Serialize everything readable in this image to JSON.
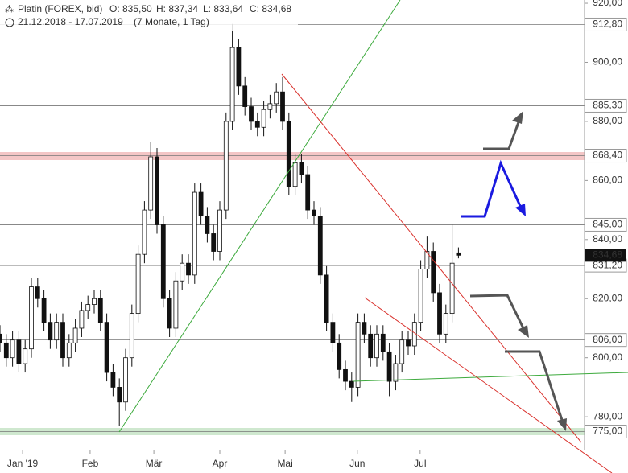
{
  "chart_data": {
    "type": "candlestick",
    "title": "Platin (FOREX, bid)",
    "ohlc_labels": [
      "O: 835,50",
      "H: 837,34",
      "L: 833,64",
      "C: 834,68"
    ],
    "subtitle": "21.12.2018 - 17.07.2019",
    "period": "(7 Monate, 1 Tag)",
    "x": [
      0,
      2,
      4,
      6,
      8,
      10,
      12,
      14,
      16,
      18,
      20,
      22,
      24,
      26,
      28,
      30,
      32,
      34,
      36,
      38,
      40,
      42,
      44,
      46,
      48,
      50,
      52,
      54,
      56,
      58,
      60,
      62,
      64,
      66,
      68,
      70,
      72,
      74,
      76,
      78,
      80,
      82,
      84,
      86,
      88,
      90,
      92,
      94,
      96,
      98,
      100,
      102,
      104,
      106,
      108,
      110,
      112,
      114,
      116,
      118,
      120,
      122,
      124,
      126,
      128,
      130,
      132,
      134,
      136,
      138,
      140,
      142,
      144,
      146
    ],
    "open": [
      808,
      805,
      800,
      806,
      798,
      803,
      824,
      820,
      812,
      806,
      812,
      800,
      805,
      810,
      816,
      818,
      820,
      812,
      795,
      790,
      785,
      800,
      815,
      835,
      850,
      868,
      845,
      820,
      810,
      826,
      832,
      828,
      856,
      848,
      842,
      836,
      850,
      880,
      905,
      892,
      885,
      880,
      878,
      884,
      886,
      890,
      880,
      858,
      866,
      862,
      850,
      848,
      828,
      812,
      805,
      796,
      792,
      790,
      812,
      808,
      800,
      808,
      802,
      792,
      798,
      806,
      804,
      812,
      830,
      836,
      822,
      808,
      815,
      835.5
    ],
    "high": [
      811,
      808,
      809,
      809,
      806,
      827,
      827,
      823,
      815,
      815,
      815,
      808,
      813,
      819,
      821,
      823,
      823,
      815,
      798,
      793,
      803,
      818,
      838,
      853,
      873,
      871,
      848,
      823,
      829,
      835,
      835,
      859,
      859,
      851,
      845,
      853,
      883,
      913,
      908,
      895,
      888,
      883,
      887,
      889,
      893,
      895,
      883,
      869,
      869,
      865,
      853,
      851,
      831,
      815,
      808,
      799,
      795,
      815,
      815,
      811,
      811,
      811,
      805,
      801,
      809,
      809,
      815,
      833,
      841,
      839,
      825,
      818,
      845,
      837.34
    ],
    "low": [
      802,
      797,
      797,
      795,
      795,
      800,
      817,
      809,
      803,
      803,
      797,
      797,
      802,
      807,
      813,
      815,
      809,
      792,
      787,
      777,
      782,
      797,
      812,
      832,
      847,
      842,
      817,
      807,
      807,
      823,
      825,
      825,
      845,
      839,
      833,
      833,
      847,
      877,
      889,
      882,
      877,
      875,
      875,
      881,
      883,
      877,
      855,
      855,
      859,
      847,
      845,
      825,
      809,
      802,
      793,
      789,
      785,
      787,
      805,
      797,
      797,
      799,
      787,
      789,
      795,
      801,
      801,
      809,
      827,
      819,
      805,
      805,
      812,
      833.64
    ],
    "close": [
      805,
      800,
      806,
      798,
      803,
      824,
      820,
      812,
      806,
      812,
      800,
      805,
      810,
      816,
      818,
      820,
      812,
      795,
      790,
      785,
      800,
      815,
      835,
      850,
      868,
      845,
      820,
      810,
      826,
      832,
      828,
      856,
      848,
      842,
      836,
      850,
      880,
      905,
      892,
      885,
      880,
      878,
      884,
      886,
      890,
      880,
      858,
      866,
      862,
      850,
      848,
      828,
      812,
      805,
      796,
      792,
      790,
      812,
      808,
      800,
      808,
      802,
      792,
      798,
      806,
      804,
      812,
      830,
      836,
      822,
      808,
      815,
      832,
      834.68
    ],
    "xlim": [
      0,
      200
    ],
    "xticks": [
      {
        "value": 7.2,
        "label": "Jan '19"
      },
      {
        "value": 28.7,
        "label": "Feb"
      },
      {
        "value": 49,
        "label": "Mär"
      },
      {
        "value": 70,
        "label": "Apr"
      },
      {
        "value": 90.8,
        "label": "Mai"
      },
      {
        "value": 113.8,
        "label": "Jun"
      },
      {
        "value": 133.8,
        "label": "Jul"
      }
    ],
    "ylim": [
      768.6,
      921.1
    ],
    "yticks": [
      {
        "value": 780,
        "label": "780,00"
      },
      {
        "value": 800,
        "label": "800,00"
      },
      {
        "value": 820,
        "label": "820,00"
      },
      {
        "value": 840,
        "label": "840,00"
      },
      {
        "value": 860,
        "label": "860,00"
      },
      {
        "value": 880,
        "label": "880,00"
      },
      {
        "value": 900,
        "label": "900,00"
      },
      {
        "value": 920,
        "label": "920,00"
      }
    ],
    "levels": [
      {
        "value": 912.8,
        "label": "912,80"
      },
      {
        "value": 885.3,
        "label": "885,30"
      },
      {
        "value": 868.4,
        "label": "868,40"
      },
      {
        "value": 845,
        "label": "845,00"
      },
      {
        "value": 831.2,
        "label": "831,20"
      },
      {
        "value": 806,
        "label": "806,00"
      },
      {
        "value": 775,
        "label": "775,00"
      }
    ],
    "last": {
      "value": 834.68,
      "label": "834,68"
    }
  }
}
